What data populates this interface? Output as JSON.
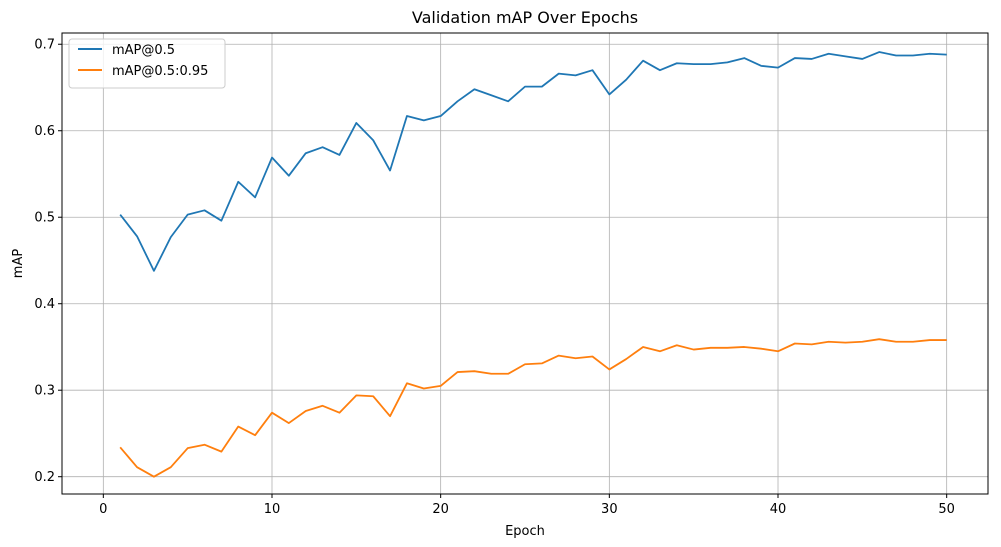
{
  "chart_data": {
    "type": "line",
    "title": "Validation mAP Over Epochs",
    "xlabel": "Epoch",
    "ylabel": "mAP",
    "xlim": [
      -2.45,
      52.45
    ],
    "ylim": [
      0.18,
      0.713
    ],
    "xticks": [
      0,
      10,
      20,
      30,
      40,
      50
    ],
    "yticks": [
      0.2,
      0.3,
      0.4,
      0.5,
      0.6,
      0.7
    ],
    "ytick_labels": [
      "0.2",
      "0.3",
      "0.4",
      "0.5",
      "0.6",
      "0.7"
    ],
    "grid": true,
    "legend_position": "upper left",
    "x": [
      1,
      2,
      3,
      4,
      5,
      6,
      7,
      8,
      9,
      10,
      11,
      12,
      13,
      14,
      15,
      16,
      17,
      18,
      19,
      20,
      21,
      22,
      23,
      24,
      25,
      26,
      27,
      28,
      29,
      30,
      31,
      32,
      33,
      34,
      35,
      36,
      37,
      38,
      39,
      40,
      41,
      42,
      43,
      44,
      45,
      46,
      47,
      48,
      49,
      50
    ],
    "series": [
      {
        "name": "mAP@0.5",
        "color": "#1f77b4",
        "values": [
          0.503,
          0.478,
          0.438,
          0.477,
          0.503,
          0.508,
          0.496,
          0.541,
          0.523,
          0.569,
          0.548,
          0.574,
          0.581,
          0.572,
          0.609,
          0.589,
          0.554,
          0.617,
          0.612,
          0.617,
          0.634,
          0.648,
          0.641,
          0.634,
          0.651,
          0.651,
          0.666,
          0.664,
          0.67,
          0.642,
          0.659,
          0.681,
          0.67,
          0.678,
          0.677,
          0.677,
          0.679,
          0.684,
          0.675,
          0.673,
          0.684,
          0.683,
          0.689,
          0.686,
          0.683,
          0.691,
          0.687,
          0.687,
          0.689,
          0.688
        ]
      },
      {
        "name": "mAP@0.5:0.95",
        "color": "#ff7f0e",
        "values": [
          0.234,
          0.211,
          0.2,
          0.211,
          0.233,
          0.237,
          0.229,
          0.258,
          0.248,
          0.274,
          0.262,
          0.276,
          0.282,
          0.274,
          0.294,
          0.293,
          0.27,
          0.308,
          0.302,
          0.305,
          0.321,
          0.322,
          0.319,
          0.319,
          0.33,
          0.331,
          0.34,
          0.337,
          0.339,
          0.324,
          0.336,
          0.35,
          0.345,
          0.352,
          0.347,
          0.349,
          0.349,
          0.35,
          0.348,
          0.345,
          0.354,
          0.353,
          0.356,
          0.355,
          0.356,
          0.359,
          0.356,
          0.356,
          0.358,
          0.358
        ]
      }
    ]
  }
}
